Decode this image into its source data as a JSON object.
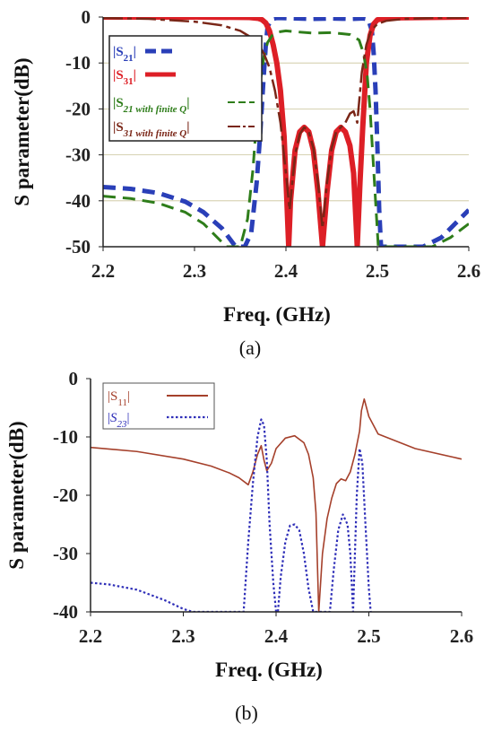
{
  "chart_data": [
    {
      "type": "line",
      "caption": "(a)",
      "xlabel": "Freq. (GHz)",
      "ylabel": "S parameter(dB)",
      "xlim": [
        2.2,
        2.6
      ],
      "ylim": [
        -50,
        0
      ],
      "xticks": [
        "2.2",
        "2.3",
        "2.4",
        "2.5",
        "2.6"
      ],
      "yticks": [
        "0",
        "-10",
        "-20",
        "-30",
        "-40",
        "-50"
      ],
      "grid": true,
      "legend_position": "upper-left",
      "series": [
        {
          "name": "|S21|",
          "color": "#2a3fb8",
          "style": "dashed",
          "x": [
            2.2,
            2.23,
            2.26,
            2.29,
            2.31,
            2.33,
            2.345,
            2.355,
            2.362,
            2.368,
            2.372,
            2.375,
            2.378,
            2.38,
            2.385,
            2.39,
            2.41,
            2.43,
            2.45,
            2.47,
            2.485,
            2.49,
            2.494,
            2.496,
            2.498,
            2.5,
            2.502,
            2.504,
            2.508,
            2.53,
            2.55,
            2.57,
            2.585,
            2.6
          ],
          "y": [
            -37,
            -37.4,
            -38.3,
            -40.2,
            -42.5,
            -46,
            -50,
            -50,
            -47,
            -36,
            -25,
            -15,
            -6,
            -2,
            -0.4,
            -0.2,
            -0.3,
            -0.4,
            -0.3,
            -0.4,
            -0.3,
            -0.5,
            -3,
            -8,
            -16,
            -28,
            -42,
            -50,
            -50,
            -50,
            -50,
            -48,
            -45,
            -42
          ]
        },
        {
          "name": "|S31|",
          "color": "#dd1f26",
          "style": "solid",
          "x": [
            2.2,
            2.3,
            2.36,
            2.37,
            2.374,
            2.378,
            2.382,
            2.386,
            2.39,
            2.394,
            2.398,
            2.401,
            2.403,
            2.405,
            2.41,
            2.415,
            2.42,
            2.425,
            2.43,
            2.435,
            2.44,
            2.445,
            2.45,
            2.455,
            2.46,
            2.465,
            2.47,
            2.474,
            2.478,
            2.481,
            2.484,
            2.488,
            2.492,
            2.496,
            2.5,
            2.51,
            2.6
          ],
          "y": [
            0,
            0,
            -0.1,
            -0.3,
            -0.6,
            -1.3,
            -3,
            -6,
            -10,
            -16,
            -26,
            -40,
            -50,
            -40,
            -29,
            -25,
            -24,
            -25,
            -29,
            -38,
            -50,
            -38,
            -29,
            -25,
            -24,
            -25,
            -28,
            -34,
            -50,
            -36,
            -24,
            -10,
            -4,
            -1.5,
            -0.6,
            -0.2,
            0
          ]
        },
        {
          "name": "|S21 with finite Q|",
          "color": "#2e7d1a",
          "style": "dashed",
          "x": [
            2.2,
            2.23,
            2.26,
            2.29,
            2.31,
            2.325,
            2.335,
            2.342,
            2.35,
            2.358,
            2.364,
            2.368,
            2.372,
            2.376,
            2.38,
            2.385,
            2.39,
            2.4,
            2.41,
            2.43,
            2.45,
            2.47,
            2.48,
            2.485,
            2.489,
            2.492,
            2.495,
            2.498,
            2.501,
            2.505,
            2.53,
            2.56,
            2.58,
            2.6
          ],
          "y": [
            -39,
            -39.5,
            -40.5,
            -42.5,
            -45,
            -48,
            -50,
            -50,
            -50,
            -44,
            -33,
            -22,
            -14,
            -8.5,
            -5.5,
            -4,
            -3.3,
            -3,
            -3.2,
            -3.5,
            -3.4,
            -3.8,
            -5,
            -8,
            -13,
            -20,
            -30,
            -40,
            -50,
            -50,
            -50,
            -50,
            -48,
            -45
          ]
        },
        {
          "name": "|S31 with finite Q|",
          "color": "#7a2617",
          "style": "dashdot",
          "x": [
            2.2,
            2.25,
            2.3,
            2.33,
            2.35,
            2.36,
            2.37,
            2.376,
            2.382,
            2.388,
            2.394,
            2.4,
            2.404,
            2.41,
            2.415,
            2.42,
            2.425,
            2.43,
            2.435,
            2.44,
            2.445,
            2.45,
            2.455,
            2.46,
            2.465,
            2.47,
            2.474,
            2.478,
            2.483,
            2.488,
            2.493,
            2.5,
            2.51,
            2.53,
            2.56,
            2.6
          ],
          "y": [
            -0.2,
            -0.4,
            -1,
            -1.8,
            -3,
            -4.2,
            -6,
            -8,
            -11,
            -16,
            -23,
            -34,
            -42,
            -30,
            -25.5,
            -24,
            -25,
            -28.5,
            -36,
            -46,
            -36,
            -28.5,
            -25,
            -24,
            -23,
            -21,
            -20.5,
            -23,
            -12,
            -6,
            -3,
            -1.5,
            -0.8,
            -0.4,
            -0.2,
            -0.1
          ]
        }
      ]
    },
    {
      "type": "line",
      "caption": "(b)",
      "xlabel": "Freq. (GHz)",
      "ylabel": "S parameter(dB)",
      "xlim": [
        2.2,
        2.6
      ],
      "ylim": [
        -40,
        0
      ],
      "xticks": [
        "2.2",
        "2.3",
        "2.4",
        "2.5",
        "2.6"
      ],
      "yticks": [
        "0",
        "-10",
        "-20",
        "-30",
        "-40"
      ],
      "grid": false,
      "legend_position": "upper-left",
      "series": [
        {
          "name": "|S11|",
          "color": "#a5402b",
          "style": "solid",
          "x": [
            2.2,
            2.25,
            2.3,
            2.33,
            2.35,
            2.36,
            2.37,
            2.375,
            2.38,
            2.384,
            2.387,
            2.39,
            2.395,
            2.4,
            2.41,
            2.42,
            2.43,
            2.435,
            2.44,
            2.443,
            2.446,
            2.45,
            2.455,
            2.46,
            2.465,
            2.47,
            2.475,
            2.48,
            2.485,
            2.49,
            2.492,
            2.495,
            2.5,
            2.51,
            2.55,
            2.6
          ],
          "y": [
            -11.8,
            -12.5,
            -13.8,
            -15,
            -16.2,
            -17,
            -18.2,
            -16,
            -13,
            -11.5,
            -14,
            -15.8,
            -14.5,
            -12,
            -10.2,
            -9.8,
            -11,
            -13,
            -17,
            -23,
            -40,
            -30,
            -24,
            -20.5,
            -18,
            -17.2,
            -17.5,
            -16,
            -13,
            -9,
            -5.5,
            -3.5,
            -6.5,
            -9.5,
            -12,
            -13.8
          ]
        },
        {
          "name": "|S23|",
          "color": "#2f2fb8",
          "style": "dotted",
          "x": [
            2.2,
            2.22,
            2.25,
            2.28,
            2.3,
            2.31,
            2.365,
            2.37,
            2.375,
            2.38,
            2.384,
            2.387,
            2.39,
            2.393,
            2.397,
            2.4,
            2.402,
            2.405,
            2.41,
            2.415,
            2.42,
            2.425,
            2.43,
            2.435,
            2.44,
            2.442,
            2.458,
            2.462,
            2.467,
            2.472,
            2.477,
            2.48,
            2.483,
            2.487,
            2.49,
            2.493,
            2.496,
            2.5,
            2.502
          ],
          "y": [
            -35,
            -35.3,
            -36.2,
            -38,
            -39.5,
            -40,
            -40,
            -28,
            -18,
            -10,
            -7,
            -8,
            -14,
            -25,
            -35,
            -40,
            -40,
            -34,
            -28,
            -25.2,
            -25,
            -26,
            -30,
            -36,
            -40,
            -40,
            -40,
            -33,
            -26,
            -23.3,
            -25,
            -30,
            -40,
            -20,
            -12,
            -14.5,
            -24,
            -36,
            -40
          ]
        }
      ]
    }
  ]
}
